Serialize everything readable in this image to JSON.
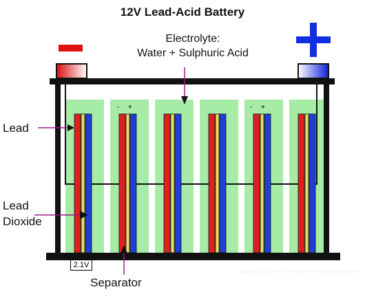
{
  "title": "12V Lead-Acid Battery",
  "electrolyte": {
    "line1": "Electrolyte:",
    "line2": "Water + Sulphuric Acid"
  },
  "labels": {
    "lead": "Lead",
    "lead_dioxide_line1": "Lead",
    "lead_dioxide_line2": "Dioxide",
    "separator": "Separator",
    "cell_voltage": "2.1V"
  },
  "cell_signs": {
    "minus": "-",
    "plus": "+"
  },
  "colors": {
    "negative_plate": "#e02020",
    "positive_plate": "#1f3fd8",
    "separator": "#e8e060",
    "electrolyte": "#a6eba6",
    "casing": "#111111",
    "arrow": "#9a1a8a",
    "terminal_minus": "#e01010",
    "terminal_plus": "#1030e0"
  },
  "cells": 6
}
